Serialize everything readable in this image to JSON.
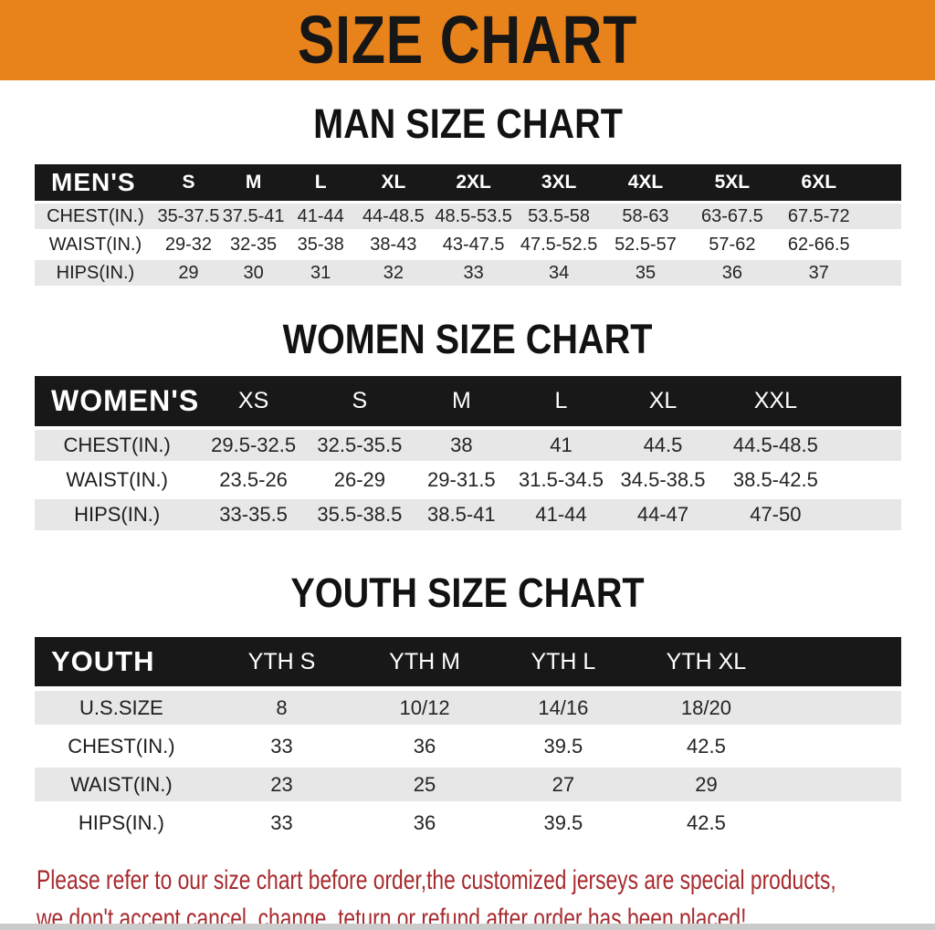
{
  "banner": {
    "title": "SIZE CHART",
    "bg_color": "#e8821b",
    "text_color": "#161616"
  },
  "sections": [
    {
      "id": "men",
      "heading": "MAN SIZE CHART",
      "group_label": "MEN'S",
      "size_columns": [
        "S",
        "M",
        "L",
        "XL",
        "2XL",
        "3XL",
        "4XL",
        "5XL",
        "6XL"
      ],
      "rows": [
        {
          "label": "CHEST(IN.)",
          "values": [
            "35-37.5",
            "37.5-41",
            "41-44",
            "44-48.5",
            "48.5-53.5",
            "53.5-58",
            "58-63",
            "63-67.5",
            "67.5-72"
          ]
        },
        {
          "label": "WAIST(IN.)",
          "values": [
            "29-32",
            "32-35",
            "35-38",
            "38-43",
            "43-47.5",
            "47.5-52.5",
            "52.5-57",
            "57-62",
            "62-66.5"
          ]
        },
        {
          "label": "HIPS(IN.)",
          "values": [
            "29",
            "30",
            "31",
            "32",
            "33",
            "34",
            "35",
            "36",
            "37"
          ]
        }
      ],
      "col_widths_pct": [
        14,
        7.5,
        7.5,
        8,
        8.8,
        9.7,
        10,
        10,
        10,
        10,
        4.5
      ]
    },
    {
      "id": "women",
      "heading": "WOMEN SIZE CHART",
      "group_label": "WOMEN'S",
      "size_columns": [
        "XS",
        "S",
        "M",
        "L",
        "XL",
        "XXL"
      ],
      "rows": [
        {
          "label": "CHEST(IN.)",
          "values": [
            "29.5-32.5",
            "32.5-35.5",
            "38",
            "41",
            "44.5",
            "44.5-48.5"
          ]
        },
        {
          "label": "WAIST(IN.)",
          "values": [
            "23.5-26",
            "26-29",
            "29-31.5",
            "31.5-34.5",
            "34.5-38.5",
            "38.5-42.5"
          ]
        },
        {
          "label": "HIPS(IN.)",
          "values": [
            "33-35.5",
            "35.5-38.5",
            "38.5-41",
            "41-44",
            "44-47",
            "47-50"
          ]
        }
      ],
      "col_widths_pct": [
        19,
        12.5,
        12,
        11.5,
        11.5,
        12,
        14,
        7.5
      ]
    },
    {
      "id": "youth",
      "heading": "YOUTH SIZE CHART",
      "group_label": "YOUTH",
      "size_columns": [
        "YTH S",
        "YTH M",
        "YTH L",
        "YTH XL"
      ],
      "rows": [
        {
          "label": "U.S.SIZE",
          "values": [
            "8",
            "10/12",
            "14/16",
            "18/20"
          ]
        },
        {
          "label": "CHEST(IN.)",
          "values": [
            "33",
            "36",
            "39.5",
            "42.5"
          ]
        },
        {
          "label": "WAIST(IN.)",
          "values": [
            "23",
            "25",
            "27",
            "29"
          ]
        },
        {
          "label": "HIPS(IN.)",
          "values": [
            "33",
            "36",
            "39.5",
            "42.5"
          ]
        }
      ],
      "col_widths_pct": [
        20,
        17,
        16,
        16,
        17,
        14
      ]
    }
  ],
  "footnote": {
    "lines": [
      "Please refer to our size chart before order,the customized jerseys are special products,",
      "we don't accept cancel, change, teturn or refund after order has been placed!"
    ],
    "color": "#a72a2e"
  },
  "colors": {
    "table_header_bar": "#181818",
    "row_stripe": "#e7e7e7",
    "row_alt": "#ffffff"
  }
}
